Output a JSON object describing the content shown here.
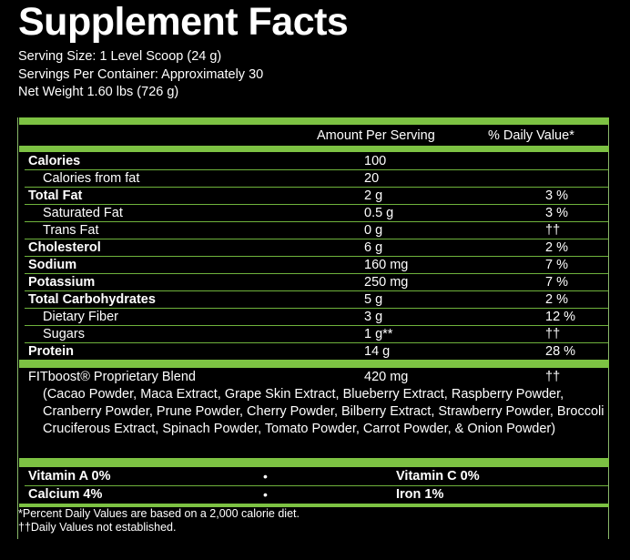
{
  "title": "Supplement Facts",
  "serving_size": "Serving Size: 1 Level Scoop (24 g)",
  "servings_per_container": "Servings Per Container: Approximately 30",
  "net_weight": "Net Weight 1.60 lbs (726 g)",
  "header": {
    "amount": "Amount Per Serving",
    "daily_value": "% Daily Value*"
  },
  "nutrients": [
    {
      "name": "Calories",
      "amount": "100",
      "dv": "",
      "bold": true,
      "indent": false
    },
    {
      "name": "Calories from fat",
      "amount": "20",
      "dv": "",
      "bold": false,
      "indent": true
    },
    {
      "name": "Total Fat",
      "amount": "2 g",
      "dv": "3 %",
      "bold": true,
      "indent": false
    },
    {
      "name": "Saturated Fat",
      "amount": "0.5 g",
      "dv": "3 %",
      "bold": false,
      "indent": true
    },
    {
      "name": "Trans Fat",
      "amount": "0 g",
      "dv": "††",
      "bold": false,
      "indent": true
    },
    {
      "name": "Cholesterol",
      "amount": "6 g",
      "dv": "2 %",
      "bold": true,
      "indent": false
    },
    {
      "name": "Sodium",
      "amount": "160 mg",
      "dv": "7 %",
      "bold": true,
      "indent": false
    },
    {
      "name": "Potassium",
      "amount": "250 mg",
      "dv": "7 %",
      "bold": true,
      "indent": false
    },
    {
      "name": "Total Carbohydrates",
      "amount": "5 g",
      "dv": "2 %",
      "bold": true,
      "indent": false
    },
    {
      "name": "Dietary Fiber",
      "amount": "3 g",
      "dv": "12 %",
      "bold": false,
      "indent": true
    },
    {
      "name": "Sugars",
      "amount": "1 g**",
      "dv": "††",
      "bold": false,
      "indent": true
    },
    {
      "name": "Protein",
      "amount": "14 g",
      "dv": "28 %",
      "bold": true,
      "indent": false
    }
  ],
  "blend": {
    "name": "FITboost® Proprietary Blend",
    "amount": "420 mg",
    "dv": "††",
    "ingredients": "(Cacao Powder, Maca Extract, Grape Skin Extract, Blueberry Extract, Raspberry Powder, Cranberry Powder, Prune Powder, Cherry Powder, Bilberry Extract, Strawberry Powder, Broccoli Cruciferous Extract, Spinach Powder, Tomato Powder, Carrot Powder, & Onion Powder)"
  },
  "vitamins": {
    "vitamin_a": "Vitamin A 0%",
    "vitamin_c": "Vitamin C 0%",
    "calcium": "Calcium 4%",
    "iron": "Iron 1%",
    "separator": "•"
  },
  "footnotes": {
    "daily_values": "*Percent Daily Values are based on a 2,000 calorie diet.",
    "not_established": "††Daily Values not established."
  },
  "colors": {
    "background": "#000000",
    "text": "#ffffff",
    "accent_green": "#7dc243"
  }
}
